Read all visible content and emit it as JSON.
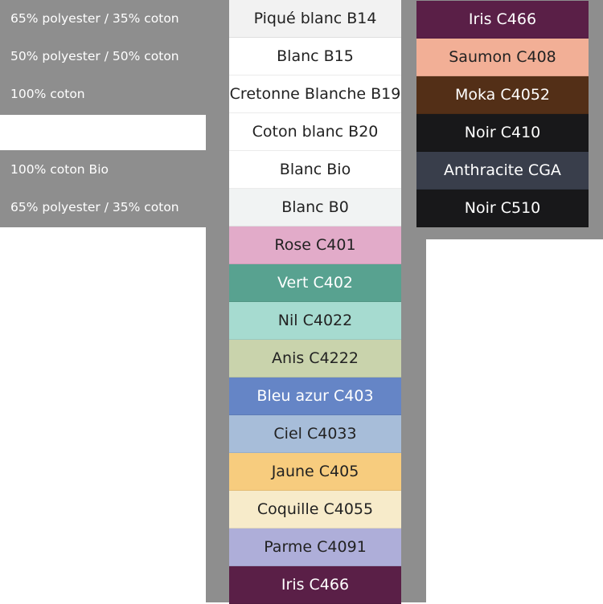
{
  "left_labels": [
    {
      "text": "65% polyester / 35% coton",
      "row": 0
    },
    {
      "text": "50% polyester / 50% coton",
      "row": 1
    },
    {
      "text": "100% coton",
      "row": 2
    },
    {
      "text": "100% coton Bio",
      "row": 4
    },
    {
      "text": "65% polyester / 35% coton",
      "row": 5
    }
  ],
  "middle_swatches": [
    {
      "name": "Piqué blanc B14",
      "color": "#f2f2f2",
      "text": "#222222"
    },
    {
      "name": "Blanc B15",
      "color": "#ffffff",
      "text": "#222222"
    },
    {
      "name": "Cretonne Blanche B19",
      "color": "#ffffff",
      "text": "#222222"
    },
    {
      "name": "Coton blanc B20",
      "color": "#ffffff",
      "text": "#222222"
    },
    {
      "name": "Blanc Bio",
      "color": "#ffffff",
      "text": "#222222"
    },
    {
      "name": "Blanc B0",
      "color": "#f1f3f3",
      "text": "#222222"
    },
    {
      "name": "Rose C401",
      "color": "#e2abc9",
      "text": "#222222"
    },
    {
      "name": "Vert C402",
      "color": "#58a290",
      "text": "#ffffff"
    },
    {
      "name": "Nil C4022",
      "color": "#a6dbd0",
      "text": "#222222"
    },
    {
      "name": "Anis C4222",
      "color": "#c9d3ac",
      "text": "#222222"
    },
    {
      "name": "Bleu azur C403",
      "color": "#6585c6",
      "text": "#ffffff"
    },
    {
      "name": "Ciel C4033",
      "color": "#a7bdd9",
      "text": "#222222"
    },
    {
      "name": "Jaune C405",
      "color": "#f7cc7e",
      "text": "#222222"
    },
    {
      "name": "Coquille C4055",
      "color": "#f7ebca",
      "text": "#222222"
    },
    {
      "name": "Parme C4091",
      "color": "#aeaed9",
      "text": "#222222"
    },
    {
      "name": "Iris C466",
      "color": "#5a1f47",
      "text": "#ffffff"
    }
  ],
  "right_swatches": [
    {
      "name": "Iris C466",
      "color": "#5a1f47",
      "text": "#ffffff"
    },
    {
      "name": "Saumon C408",
      "color": "#f2af96",
      "text": "#222222"
    },
    {
      "name": "Moka C4052",
      "color": "#532f17",
      "text": "#ffffff"
    },
    {
      "name": "Noir C410",
      "color": "#18181a",
      "text": "#ffffff"
    },
    {
      "name": "Anthracite CGA",
      "color": "#393e4b",
      "text": "#ffffff"
    },
    {
      "name": "Noir C510",
      "color": "#18181a",
      "text": "#ffffff"
    }
  ]
}
